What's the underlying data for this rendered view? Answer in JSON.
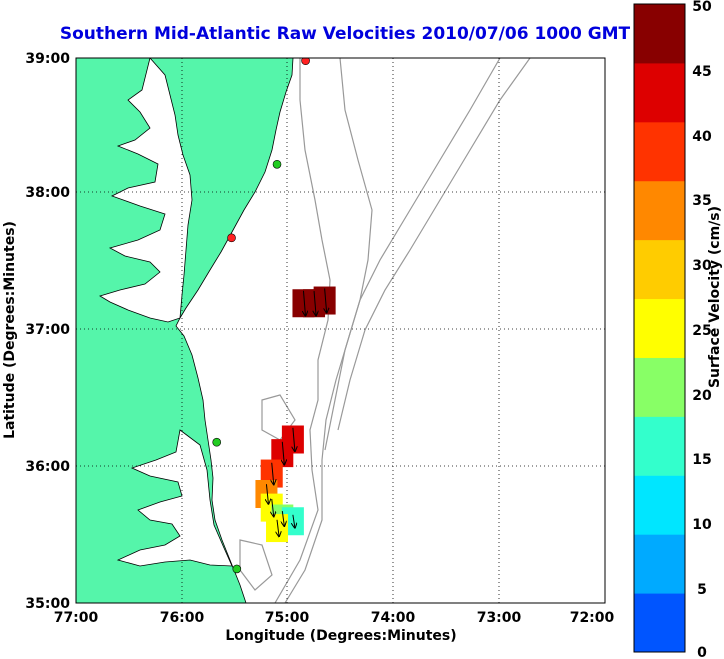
{
  "chart_data": {
    "type": "heatmap",
    "title": "Southern Mid-Atlantic Raw Velocities 2010/07/06 1000 GMT",
    "xlabel": "Longitude (Degrees:Minutes)",
    "ylabel": "Latitude (Degrees:Minutes)",
    "x_ticks": [
      "77:00",
      "76:00",
      "75:00",
      "74:00",
      "73:00",
      "72:00"
    ],
    "y_ticks": [
      "39:00",
      "38:00",
      "37:00",
      "36:00",
      "35:00"
    ],
    "xlim": [
      -77,
      -72
    ],
    "ylim": [
      35,
      39
    ],
    "grid": true,
    "colorbar": {
      "label": "Surface Velocity (cm/s)",
      "range": [
        0,
        50
      ],
      "ticks": [
        "50",
        "45",
        "40",
        "35",
        "30",
        "25",
        "20",
        "15",
        "10",
        "5",
        "0"
      ],
      "colors": [
        "#0055ff",
        "#00aaff",
        "#00e6ff",
        "#33ffcc",
        "#88ff66",
        "#ffff00",
        "#ffcc00",
        "#ff8800",
        "#ff3300",
        "#dd0000",
        "#880000"
      ]
    },
    "colors": {
      "land": "#55f5aa",
      "coast": "#000000",
      "bathymetry": "#999999",
      "station_active": "#22cc22",
      "station_inactive": "#ff2222"
    },
    "stations": [
      {
        "lon": -74.83,
        "lat": 38.98,
        "status": "inactive"
      },
      {
        "lon": -75.1,
        "lat": 38.22,
        "status": "active"
      },
      {
        "lon": -75.53,
        "lat": 37.68,
        "status": "inactive"
      },
      {
        "lon": -75.67,
        "lat": 36.18,
        "status": "active"
      },
      {
        "lon": -75.48,
        "lat": 35.25,
        "status": "active"
      }
    ],
    "velocity_cells": [
      {
        "lon": -74.85,
        "lat": 37.2,
        "speed": 48
      },
      {
        "lon": -74.75,
        "lat": 37.2,
        "speed": 47
      },
      {
        "lon": -74.65,
        "lat": 37.22,
        "speed": 46
      },
      {
        "lon": -74.95,
        "lat": 36.2,
        "speed": 44
      },
      {
        "lon": -75.05,
        "lat": 36.1,
        "speed": 42
      },
      {
        "lon": -75.15,
        "lat": 35.95,
        "speed": 39
      },
      {
        "lon": -75.2,
        "lat": 35.8,
        "speed": 33
      },
      {
        "lon": -75.15,
        "lat": 35.7,
        "speed": 27
      },
      {
        "lon": -75.05,
        "lat": 35.62,
        "speed": 20
      },
      {
        "lon": -74.95,
        "lat": 35.6,
        "speed": 14
      },
      {
        "lon": -75.1,
        "lat": 35.55,
        "speed": 24
      }
    ]
  }
}
